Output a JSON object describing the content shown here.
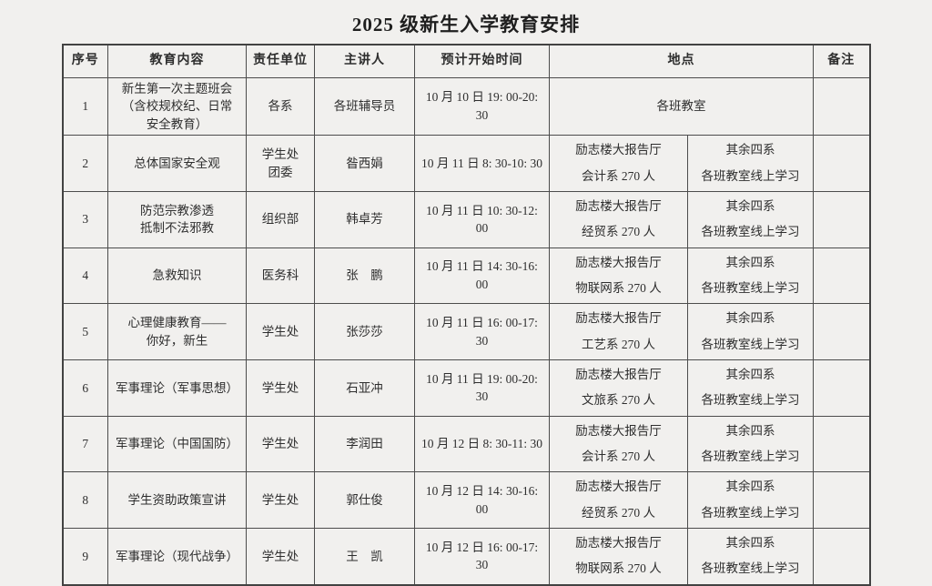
{
  "page": {
    "title": "2025 级新生入学教育安排",
    "background_color": "#f1f0ee",
    "border_color": "#4c4c4c",
    "text_color": "#2e2e2e"
  },
  "table": {
    "headers": {
      "no": "序号",
      "content": "教育内容",
      "unit": "责任单位",
      "speaker": "主讲人",
      "time": "预计开始时间",
      "place": "地点",
      "note": "备注"
    },
    "rows": [
      {
        "no": "1",
        "content": [
          "新生第一次主题班会",
          "（含校规校纪、日常",
          "安全教育）"
        ],
        "unit": "各系",
        "speaker": "各班辅导员",
        "time": "10 月 10 日 19: 00-20: 30",
        "place_merged": "各班教室",
        "note": ""
      },
      {
        "no": "2",
        "content": "总体国家安全观",
        "unit": [
          "学生处",
          "团委"
        ],
        "speaker": "昝西娟",
        "time": "10 月 11 日 8: 30-10: 30",
        "place_main": [
          "励志楼大报告厅",
          "会计系 270 人"
        ],
        "place_alt": [
          "其余四系",
          "各班教室线上学习"
        ],
        "note": ""
      },
      {
        "no": "3",
        "content": [
          "防范宗教渗透",
          "抵制不法邪教"
        ],
        "unit": "组织部",
        "speaker": "韩卓芳",
        "time": "10 月 11 日 10: 30-12: 00",
        "place_main": [
          "励志楼大报告厅",
          "经贸系 270 人"
        ],
        "place_alt": [
          "其余四系",
          "各班教室线上学习"
        ],
        "note": ""
      },
      {
        "no": "4",
        "content": "急救知识",
        "unit": "医务科",
        "speaker": "张　鹏",
        "time": "10 月 11 日 14: 30-16: 00",
        "place_main": [
          "励志楼大报告厅",
          "物联网系 270 人"
        ],
        "place_alt": [
          "其余四系",
          "各班教室线上学习"
        ],
        "note": ""
      },
      {
        "no": "5",
        "content": [
          "心理健康教育——",
          "你好，新生"
        ],
        "unit": "学生处",
        "speaker": "张莎莎",
        "time": "10 月 11 日 16: 00-17: 30",
        "place_main": [
          "励志楼大报告厅",
          "工艺系 270 人"
        ],
        "place_alt": [
          "其余四系",
          "各班教室线上学习"
        ],
        "note": ""
      },
      {
        "no": "6",
        "content": "军事理论（军事思想）",
        "unit": "学生处",
        "speaker": "石亚冲",
        "time": "10 月 11 日 19: 00-20: 30",
        "place_main": [
          "励志楼大报告厅",
          "文旅系 270 人"
        ],
        "place_alt": [
          "其余四系",
          "各班教室线上学习"
        ],
        "note": ""
      },
      {
        "no": "7",
        "content": "军事理论（中国国防）",
        "unit": "学生处",
        "speaker": "李润田",
        "time": "10 月 12 日 8: 30-11: 30",
        "place_main": [
          "励志楼大报告厅",
          "会计系 270 人"
        ],
        "place_alt": [
          "其余四系",
          "各班教室线上学习"
        ],
        "note": ""
      },
      {
        "no": "8",
        "content": "学生资助政策宣讲",
        "unit": "学生处",
        "speaker": "郭仕俊",
        "time": "10 月 12 日 14: 30-16: 00",
        "place_main": [
          "励志楼大报告厅",
          "经贸系 270 人"
        ],
        "place_alt": [
          "其余四系",
          "各班教室线上学习"
        ],
        "note": ""
      },
      {
        "no": "9",
        "content": "军事理论（现代战争）",
        "unit": "学生处",
        "speaker": "王　凯",
        "time": "10 月 12 日 16: 00-17: 30",
        "place_main": [
          "励志楼大报告厅",
          "物联网系 270 人"
        ],
        "place_alt": [
          "其余四系",
          "各班教室线上学习"
        ],
        "note": ""
      }
    ]
  }
}
